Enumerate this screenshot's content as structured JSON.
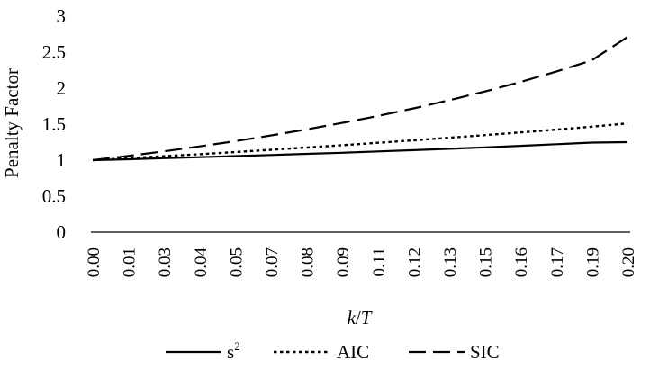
{
  "chart_data": {
    "type": "line",
    "ylabel": "Penalty Factor",
    "xlabel_italic_k": "k",
    "xlabel_slash": "/",
    "xlabel_italic_T": "T",
    "xlabel": "k/T",
    "ylim": [
      0,
      3
    ],
    "yticks": [
      "0",
      "0.5",
      "1",
      "1.5",
      "2",
      "2.5",
      "3"
    ],
    "categories": [
      "0.00",
      "0.01",
      "0.03",
      "0.04",
      "0.05",
      "0.07",
      "0.08",
      "0.09",
      "0.11",
      "0.12",
      "0.13",
      "0.15",
      "0.16",
      "0.17",
      "0.19",
      "0.20"
    ],
    "grid": false,
    "legend_position": "bottom",
    "series": [
      {
        "name": "s²",
        "name_base": "s",
        "name_sup": "2",
        "style": "solid",
        "color": "#000000",
        "values": [
          1.0,
          1.013,
          1.027,
          1.041,
          1.056,
          1.071,
          1.087,
          1.103,
          1.121,
          1.139,
          1.158,
          1.178,
          1.199,
          1.221,
          1.244,
          1.25
        ]
      },
      {
        "name": "AIC",
        "style": "dotted",
        "color": "#000000",
        "values": [
          1.0,
          1.027,
          1.055,
          1.083,
          1.113,
          1.144,
          1.175,
          1.207,
          1.241,
          1.275,
          1.311,
          1.347,
          1.385,
          1.424,
          1.465,
          1.51
        ]
      },
      {
        "name": "SIC",
        "style": "dashed",
        "color": "#000000",
        "values": [
          1.0,
          1.059,
          1.123,
          1.191,
          1.264,
          1.342,
          1.427,
          1.517,
          1.614,
          1.719,
          1.832,
          1.954,
          2.086,
          2.23,
          2.386,
          2.71
        ]
      }
    ]
  }
}
